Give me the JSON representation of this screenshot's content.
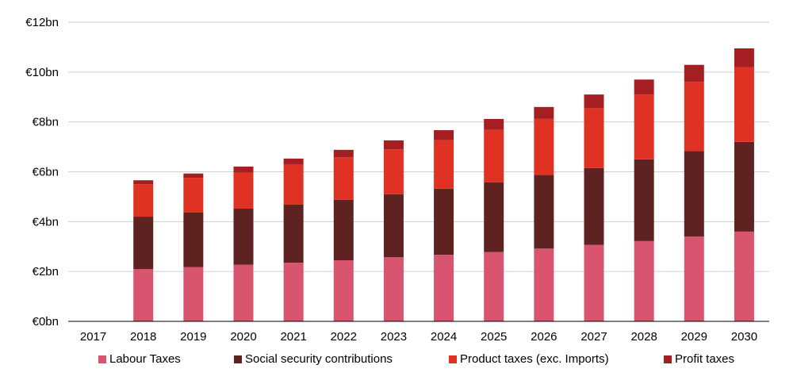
{
  "chart_data": {
    "type": "bar",
    "stacked": true,
    "categories": [
      "2017",
      "2018",
      "2019",
      "2020",
      "2021",
      "2022",
      "2023",
      "2024",
      "2025",
      "2026",
      "2027",
      "2028",
      "2029",
      "2030"
    ],
    "series": [
      {
        "name": "Labour Taxes",
        "color": "#d9546f",
        "values": [
          0,
          2.1,
          2.18,
          2.27,
          2.35,
          2.45,
          2.57,
          2.67,
          2.78,
          2.92,
          3.07,
          3.22,
          3.4,
          3.6
        ]
      },
      {
        "name": "Social security contributions",
        "color": "#5e2320",
        "values": [
          0,
          2.1,
          2.18,
          2.25,
          2.33,
          2.43,
          2.53,
          2.65,
          2.8,
          2.95,
          3.08,
          3.28,
          3.43,
          3.6
        ]
      },
      {
        "name": "Product taxes (exc. Imports)",
        "color": "#e03222",
        "values": [
          0,
          1.3,
          1.4,
          1.45,
          1.6,
          1.7,
          1.8,
          1.95,
          2.1,
          2.25,
          2.4,
          2.6,
          2.78,
          3.0
        ]
      },
      {
        "name": "Profit taxes",
        "color": "#a41e22",
        "values": [
          0,
          0.16,
          0.17,
          0.24,
          0.25,
          0.3,
          0.36,
          0.4,
          0.44,
          0.48,
          0.55,
          0.6,
          0.68,
          0.75
        ]
      }
    ],
    "y_tick_labels": [
      "€0bn",
      "€2bn",
      "€4bn",
      "€6bn",
      "€8bn",
      "€10bn",
      "€12bn"
    ],
    "ylim": [
      0,
      12
    ],
    "legend_position": "bottom",
    "grid": "horizontal"
  }
}
